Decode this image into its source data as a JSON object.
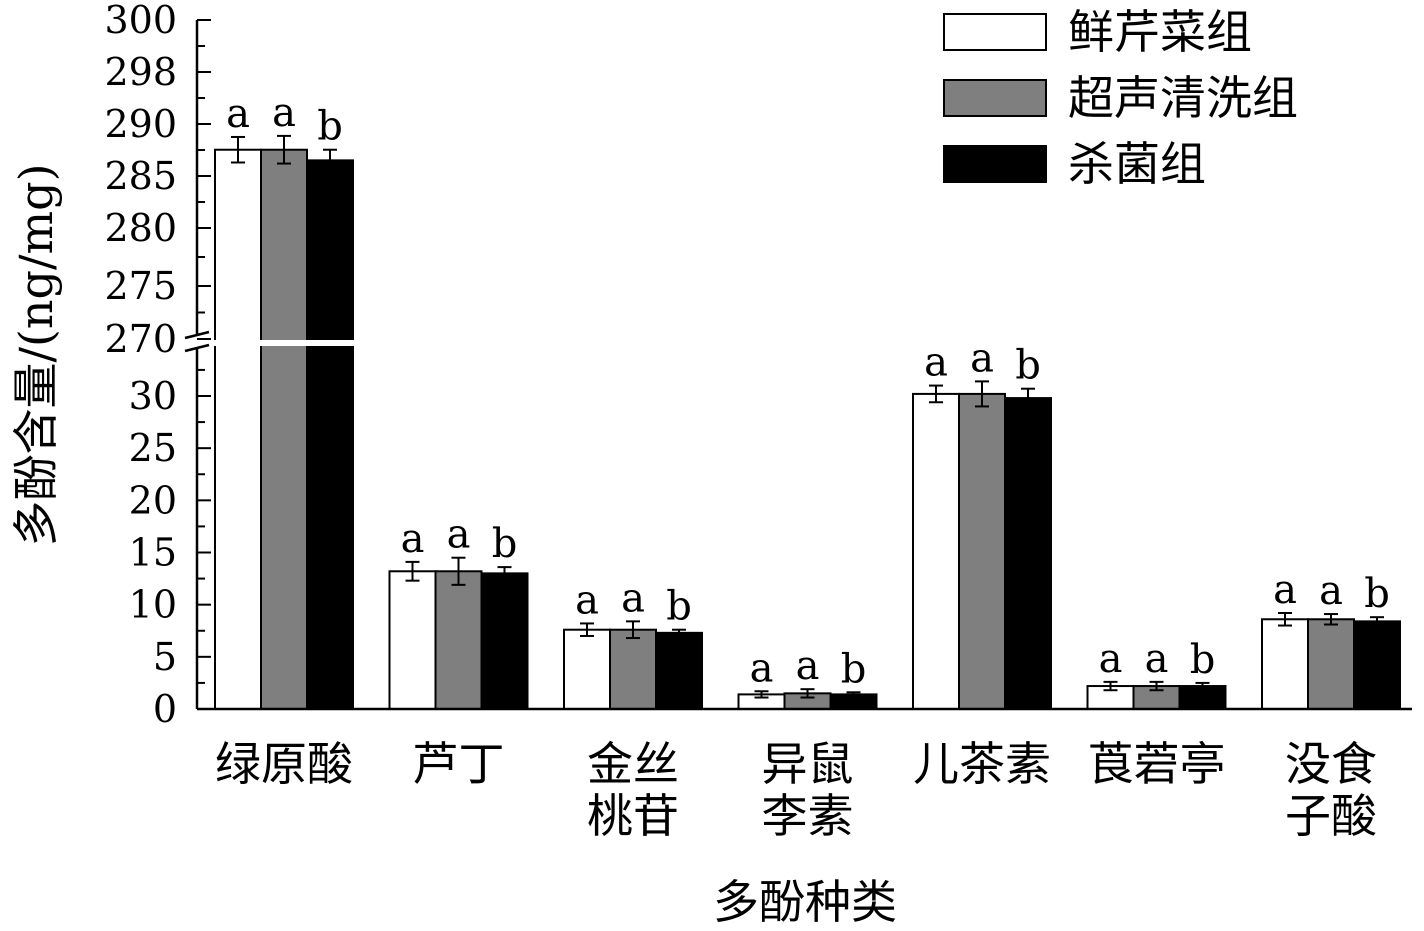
{
  "chart_data": {
    "type": "bar",
    "title": "",
    "xlabel": "多酚种类",
    "ylabel": "多酚含量/(ng/mg)",
    "y_axis_break": {
      "lower": [
        0,
        35
      ],
      "upper": [
        270,
        300
      ]
    },
    "y_ticks_lower": [
      "0",
      "5",
      "10",
      "15",
      "20",
      "25",
      "30"
    ],
    "y_ticks_upper": [
      "270",
      "275",
      "280",
      "285",
      "290",
      "298",
      "300"
    ],
    "categories": [
      [
        "绿原酸"
      ],
      [
        "芦丁"
      ],
      [
        "金丝",
        "桃苷"
      ],
      [
        "异鼠",
        "李素"
      ],
      [
        "儿茶素"
      ],
      [
        "莨菪亭"
      ],
      [
        "没食",
        "子酸"
      ]
    ],
    "series": [
      {
        "name": "鲜芹菜组",
        "color": "#ffffff",
        "values": [
          287.8,
          13.2,
          7.6,
          1.4,
          30.2,
          2.2,
          8.6
        ],
        "errors": [
          1.2,
          0.9,
          0.6,
          0.3,
          0.8,
          0.4,
          0.6
        ],
        "letters": [
          "a",
          "a",
          "a",
          "a",
          "a",
          "a",
          "a"
        ]
      },
      {
        "name": "超声清洗组",
        "color": "#7f7f7f",
        "values": [
          287.8,
          13.2,
          7.6,
          1.5,
          30.2,
          2.2,
          8.6
        ],
        "errors": [
          1.3,
          1.3,
          0.8,
          0.4,
          1.2,
          0.4,
          0.5
        ],
        "letters": [
          "a",
          "a",
          "a",
          "a",
          "a",
          "a",
          "a"
        ]
      },
      {
        "name": "杀菌组",
        "color": "#000000",
        "values": [
          286.8,
          13.0,
          7.3,
          1.4,
          29.8,
          2.2,
          8.4
        ],
        "errors": [
          1.0,
          0.6,
          0.3,
          0.2,
          0.9,
          0.3,
          0.4
        ],
        "letters": [
          "b",
          "b",
          "b",
          "b",
          "b",
          "b",
          "b"
        ]
      }
    ],
    "legend_position": "top-right",
    "grid": false
  }
}
